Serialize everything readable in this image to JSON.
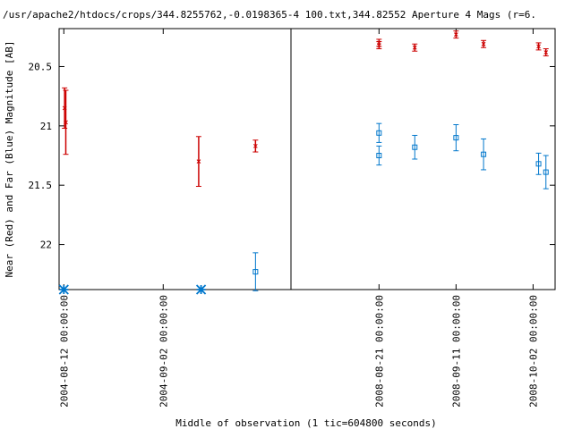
{
  "chart_data": {
    "type": "scatter",
    "title": "/usr/apache2/htdocs/crops/344.8255762,-0.0198365-4 100.txt,344.82552   Aperture 4 Mags (r=6.",
    "xlabel": "Middle of observation (1 tic=604800 seconds)",
    "ylabel": "Near (Red) and Far (Blue) Magnitude [AB]",
    "y_inverted": true,
    "ylim": [
      22.38,
      20.18
    ],
    "yticks": [
      20.5,
      21,
      21.5,
      22
    ],
    "grid": false,
    "legend": "none",
    "panels": [
      {
        "xlim": [
          "2004-08-11",
          "2004-09-29"
        ],
        "xticks": [
          "2004-08-12 00:00:00",
          "2004-09-02 00:00:00"
        ]
      },
      {
        "xlim": [
          "2008-07-28",
          "2008-10-08"
        ],
        "xticks": [
          "2008-08-21 00:00:00",
          "2008-09-11 00:00:00",
          "2008-10-02 00:00:00"
        ]
      }
    ],
    "series": [
      {
        "name": "Near (Red)",
        "color": "#cc0000",
        "points": [
          {
            "panel": 0,
            "x": "2004-08-12 04:00",
            "y": 20.85,
            "err": 0.17
          },
          {
            "panel": 0,
            "x": "2004-08-12 10:00",
            "y": 20.97,
            "err": 0.27
          },
          {
            "panel": 0,
            "x": "2004-09-09 12:00",
            "y": 21.3,
            "err": 0.21
          },
          {
            "panel": 0,
            "x": "2004-09-21 12:00",
            "y": 21.17,
            "err": 0.05
          },
          {
            "panel": 1,
            "x": "2008-08-21 00:00",
            "y": 20.3,
            "err": 0.03
          },
          {
            "panel": 1,
            "x": "2008-08-21 00:00",
            "y": 20.32,
            "err": 0.03
          },
          {
            "panel": 1,
            "x": "2008-08-30 18:00",
            "y": 20.34,
            "err": 0.03
          },
          {
            "panel": 1,
            "x": "2008-09-11 00:00",
            "y": 20.23,
            "err": 0.03
          },
          {
            "panel": 1,
            "x": "2008-09-18 12:00",
            "y": 20.31,
            "err": 0.03
          },
          {
            "panel": 1,
            "x": "2008-10-03 12:00",
            "y": 20.33,
            "err": 0.03
          },
          {
            "panel": 1,
            "x": "2008-10-05 12:00",
            "y": 20.38,
            "err": 0.03
          }
        ]
      },
      {
        "name": "Far (Blue)",
        "color": "#0077cc",
        "points": [
          {
            "panel": 0,
            "x": "2004-09-21 12:00",
            "y": 22.23,
            "err": 0.16
          },
          {
            "panel": 1,
            "x": "2008-08-21 00:00",
            "y": 21.06,
            "err": 0.08
          },
          {
            "panel": 1,
            "x": "2008-08-21 00:00",
            "y": 21.25,
            "err": 0.08
          },
          {
            "panel": 1,
            "x": "2008-08-30 18:00",
            "y": 21.18,
            "err": 0.1
          },
          {
            "panel": 1,
            "x": "2008-09-11 00:00",
            "y": 21.1,
            "err": 0.11
          },
          {
            "panel": 1,
            "x": "2008-09-18 12:00",
            "y": 21.24,
            "err": 0.13
          },
          {
            "panel": 1,
            "x": "2008-10-03 12:00",
            "y": 21.32,
            "err": 0.09
          },
          {
            "panel": 1,
            "x": "2008-10-05 12:00",
            "y": 21.39,
            "err": 0.14
          }
        ]
      }
    ],
    "limit_markers": [
      {
        "panel": 0,
        "x": "2004-08-12 00:00",
        "color": "#0077cc"
      },
      {
        "panel": 0,
        "x": "2004-09-10 00:00",
        "color": "#0077cc"
      }
    ]
  }
}
